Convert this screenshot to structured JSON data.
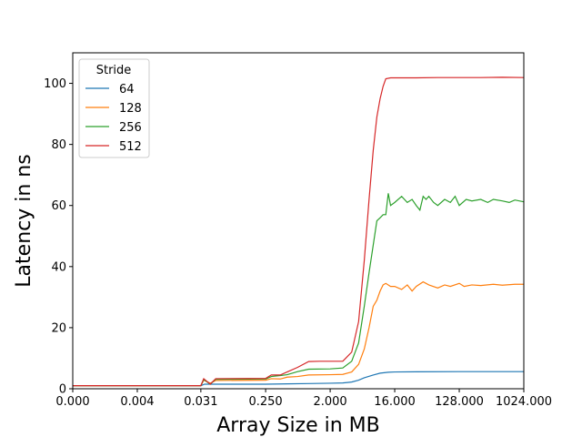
{
  "chart_data": {
    "type": "line",
    "xlabel": "Array Size in MB",
    "ylabel": "Latency in ns",
    "x_scale": "log2",
    "x_tick_labels": [
      "0.000",
      "0.004",
      "0.031",
      "0.250",
      "2.000",
      "16.000",
      "128.000",
      "1024.000"
    ],
    "x_tick_values": [
      0.0005,
      0.004,
      0.031,
      0.25,
      2,
      16,
      128,
      1024
    ],
    "xlim": [
      0.0005,
      1024
    ],
    "y_ticks": [
      0,
      20,
      40,
      60,
      80,
      100
    ],
    "ylim": [
      0,
      110
    ],
    "legend": {
      "title": "Stride",
      "position": "top-left"
    },
    "series": [
      {
        "name": "64",
        "color": "#1f77b4",
        "points": [
          [
            0.0005,
            1.0
          ],
          [
            0.031,
            1.0
          ],
          [
            0.035,
            1.5
          ],
          [
            0.25,
            1.5
          ],
          [
            0.5,
            1.6
          ],
          [
            1,
            1.7
          ],
          [
            2,
            1.8
          ],
          [
            3,
            1.9
          ],
          [
            4,
            2.2
          ],
          [
            5,
            2.8
          ],
          [
            6,
            3.6
          ],
          [
            8,
            4.5
          ],
          [
            10,
            5.1
          ],
          [
            13,
            5.4
          ],
          [
            16,
            5.5
          ],
          [
            32,
            5.55
          ],
          [
            128,
            5.6
          ],
          [
            512,
            5.6
          ],
          [
            1024,
            5.6
          ]
        ]
      },
      {
        "name": "128",
        "color": "#ff7f0e",
        "points": [
          [
            0.0005,
            1.0
          ],
          [
            0.031,
            1.0
          ],
          [
            0.034,
            2.8
          ],
          [
            0.042,
            1.8
          ],
          [
            0.05,
            2.7
          ],
          [
            0.25,
            2.8
          ],
          [
            0.3,
            3.3
          ],
          [
            0.4,
            3.2
          ],
          [
            0.5,
            3.8
          ],
          [
            0.7,
            4.0
          ],
          [
            1,
            4.5
          ],
          [
            2,
            4.6
          ],
          [
            3,
            4.7
          ],
          [
            4,
            5.5
          ],
          [
            5,
            8
          ],
          [
            6,
            13
          ],
          [
            7,
            20
          ],
          [
            8,
            27
          ],
          [
            9,
            29
          ],
          [
            10,
            32
          ],
          [
            11,
            34
          ],
          [
            12,
            34.5
          ],
          [
            14,
            33.5
          ],
          [
            16,
            33.5
          ],
          [
            20,
            32.5
          ],
          [
            24,
            34
          ],
          [
            28,
            32
          ],
          [
            32,
            33.5
          ],
          [
            40,
            35
          ],
          [
            48,
            34
          ],
          [
            64,
            33
          ],
          [
            80,
            34
          ],
          [
            96,
            33.5
          ],
          [
            128,
            34.5
          ],
          [
            150,
            33.5
          ],
          [
            192,
            34
          ],
          [
            256,
            33.8
          ],
          [
            384,
            34.2
          ],
          [
            512,
            33.9
          ],
          [
            768,
            34.2
          ],
          [
            1024,
            34.2
          ]
        ]
      },
      {
        "name": "256",
        "color": "#2ca02c",
        "points": [
          [
            0.0005,
            1.0
          ],
          [
            0.031,
            1.0
          ],
          [
            0.034,
            3.0
          ],
          [
            0.042,
            1.5
          ],
          [
            0.05,
            3.1
          ],
          [
            0.25,
            3.2
          ],
          [
            0.3,
            4.0
          ],
          [
            0.4,
            4.3
          ],
          [
            0.5,
            4.6
          ],
          [
            0.7,
            5.6
          ],
          [
            1,
            6.4
          ],
          [
            2,
            6.5
          ],
          [
            3,
            6.8
          ],
          [
            4,
            9
          ],
          [
            5,
            15
          ],
          [
            6,
            27
          ],
          [
            7,
            38
          ],
          [
            8,
            47
          ],
          [
            9,
            55
          ],
          [
            10,
            56
          ],
          [
            11,
            57
          ],
          [
            12,
            57
          ],
          [
            13,
            64
          ],
          [
            14,
            60
          ],
          [
            16,
            61
          ],
          [
            20,
            63
          ],
          [
            24,
            61
          ],
          [
            28,
            62
          ],
          [
            32,
            60
          ],
          [
            36,
            58.5
          ],
          [
            40,
            63
          ],
          [
            44,
            62
          ],
          [
            48,
            63
          ],
          [
            56,
            61
          ],
          [
            64,
            60
          ],
          [
            80,
            62
          ],
          [
            96,
            61
          ],
          [
            112,
            63
          ],
          [
            128,
            60
          ],
          [
            160,
            62
          ],
          [
            192,
            61.5
          ],
          [
            256,
            62
          ],
          [
            320,
            61
          ],
          [
            384,
            62
          ],
          [
            512,
            61.5
          ],
          [
            640,
            61
          ],
          [
            768,
            61.8
          ],
          [
            1024,
            61.2
          ]
        ]
      },
      {
        "name": "512",
        "color": "#d62728",
        "points": [
          [
            0.0005,
            1.0
          ],
          [
            0.031,
            1.0
          ],
          [
            0.034,
            3.3
          ],
          [
            0.042,
            1.5
          ],
          [
            0.05,
            3.3
          ],
          [
            0.25,
            3.4
          ],
          [
            0.3,
            4.5
          ],
          [
            0.4,
            4.5
          ],
          [
            0.5,
            5.5
          ],
          [
            0.7,
            7
          ],
          [
            1,
            8.9
          ],
          [
            1.4,
            9.0
          ],
          [
            2,
            9.0
          ],
          [
            3,
            9.0
          ],
          [
            4,
            12
          ],
          [
            5,
            22
          ],
          [
            6,
            42
          ],
          [
            7,
            62
          ],
          [
            8,
            78
          ],
          [
            9,
            89
          ],
          [
            10,
            95
          ],
          [
            11,
            99
          ],
          [
            12,
            101.5
          ],
          [
            14,
            101.8
          ],
          [
            16,
            101.8
          ],
          [
            32,
            101.8
          ],
          [
            64,
            101.9
          ],
          [
            128,
            101.9
          ],
          [
            256,
            101.9
          ],
          [
            512,
            102.0
          ],
          [
            1024,
            101.9
          ]
        ]
      }
    ]
  }
}
